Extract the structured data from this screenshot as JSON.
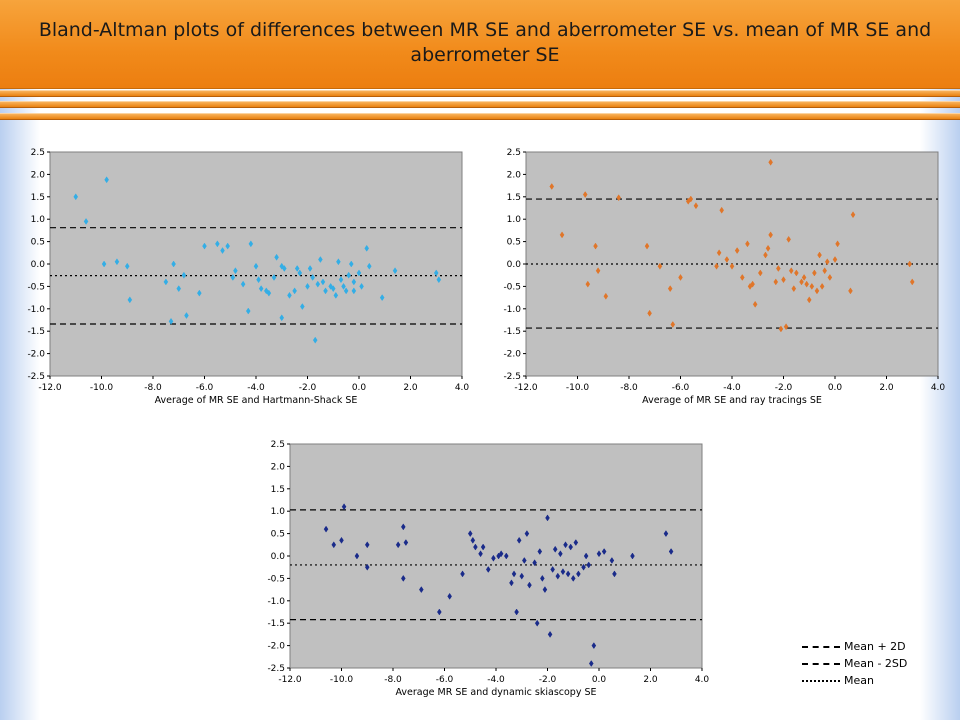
{
  "title": "Bland-Altman plots of differences between MR SE and aberrometer SE vs. mean of MR SE and aberrometer SE",
  "legend": {
    "upper": "Mean + 2D",
    "lower": "Mean - 2SD",
    "mean": "Mean"
  },
  "chart_data": [
    {
      "type": "scatter",
      "xlabel": "Average of MR SE and Hartmann-Shack SE",
      "xlim": [
        -12,
        4
      ],
      "ylim": [
        -2.5,
        2.5
      ],
      "xticks": [
        "-12.0",
        "-10.0",
        "-8.0",
        "-6.0",
        "-4.0",
        "-2.0",
        "0.0",
        "2.0",
        "4.0"
      ],
      "yticks": [
        "2.5",
        "2.0",
        "1.5",
        "1.0",
        "0.5",
        "0.0",
        "-0.5",
        "-1.0",
        "-1.5",
        "-2.0",
        "-2.5"
      ],
      "color": "#33aee6",
      "mean": -0.26,
      "upper": 0.81,
      "lower": -1.34,
      "points": [
        [
          -11.0,
          1.5
        ],
        [
          -10.6,
          0.95
        ],
        [
          -9.8,
          1.88
        ],
        [
          -9.9,
          0.0
        ],
        [
          -9.4,
          0.05
        ],
        [
          -9.0,
          -0.05
        ],
        [
          -8.9,
          -0.8
        ],
        [
          -7.5,
          -0.4
        ],
        [
          -7.3,
          -1.28
        ],
        [
          -7.2,
          0.0
        ],
        [
          -7.0,
          -0.55
        ],
        [
          -6.8,
          -0.25
        ],
        [
          -6.7,
          -1.15
        ],
        [
          -6.2,
          -0.65
        ],
        [
          -6.0,
          0.4
        ],
        [
          -5.5,
          0.45
        ],
        [
          -5.3,
          0.3
        ],
        [
          -5.1,
          0.4
        ],
        [
          -4.9,
          -0.3
        ],
        [
          -4.8,
          -0.15
        ],
        [
          -4.5,
          -0.45
        ],
        [
          -4.2,
          0.45
        ],
        [
          -4.0,
          -0.05
        ],
        [
          -3.9,
          -0.35
        ],
        [
          -3.8,
          -0.55
        ],
        [
          -3.6,
          -0.6
        ],
        [
          -3.3,
          -0.3
        ],
        [
          -3.2,
          0.15
        ],
        [
          -3.0,
          -0.05
        ],
        [
          -3.0,
          -1.2
        ],
        [
          -2.9,
          -0.1
        ],
        [
          -2.7,
          -0.7
        ],
        [
          -2.5,
          -0.6
        ],
        [
          -2.3,
          -0.2
        ],
        [
          -2.2,
          -0.95
        ],
        [
          -2.0,
          -0.5
        ],
        [
          -1.9,
          -0.1
        ],
        [
          -1.8,
          -0.3
        ],
        [
          -1.7,
          -1.7
        ],
        [
          -1.5,
          0.1
        ],
        [
          -1.4,
          -0.4
        ],
        [
          -1.3,
          -0.6
        ],
        [
          -1.1,
          -0.5
        ],
        [
          -0.9,
          -0.7
        ],
        [
          -0.8,
          0.05
        ],
        [
          -0.7,
          -0.35
        ],
        [
          -0.6,
          -0.5
        ],
        [
          -0.5,
          -0.6
        ],
        [
          -0.4,
          -0.25
        ],
        [
          -0.3,
          0.0
        ],
        [
          -0.2,
          -0.4
        ],
        [
          0.0,
          -0.2
        ],
        [
          0.1,
          -0.5
        ],
        [
          0.3,
          0.35
        ],
        [
          0.4,
          -0.05
        ],
        [
          0.9,
          -0.75
        ],
        [
          1.4,
          -0.15
        ],
        [
          3.0,
          -0.2
        ],
        [
          3.1,
          -0.35
        ],
        [
          -3.5,
          -0.65
        ],
        [
          -4.3,
          -1.05
        ],
        [
          -2.4,
          -0.1
        ],
        [
          -1.6,
          -0.45
        ],
        [
          -1.0,
          -0.55
        ],
        [
          -0.2,
          -0.6
        ]
      ]
    },
    {
      "type": "scatter",
      "xlabel": "Average of MR SE and ray tracings SE",
      "xlim": [
        -12,
        4
      ],
      "ylim": [
        -2.5,
        2.5
      ],
      "xticks": [
        "-12.0",
        "-10.0",
        "-8.0",
        "-6.0",
        "-4.0",
        "-2.0",
        "0.0",
        "2.0",
        "4.0"
      ],
      "yticks": [
        "2.5",
        "2.0",
        "1.5",
        "1.0",
        "0.5",
        "0.0",
        "-0.5",
        "-1.0",
        "-1.5",
        "-2.0",
        "-2.5"
      ],
      "color": "#e0762a",
      "mean": 0.0,
      "upper": 1.45,
      "lower": -1.43,
      "points": [
        [
          -11.0,
          1.73
        ],
        [
          -10.6,
          0.65
        ],
        [
          -9.7,
          1.55
        ],
        [
          -9.6,
          -0.45
        ],
        [
          -9.3,
          0.4
        ],
        [
          -9.2,
          -0.15
        ],
        [
          -8.9,
          -0.72
        ],
        [
          -8.4,
          1.48
        ],
        [
          -7.3,
          0.4
        ],
        [
          -7.2,
          -1.1
        ],
        [
          -6.8,
          -0.05
        ],
        [
          -6.4,
          -0.55
        ],
        [
          -6.3,
          -1.35
        ],
        [
          -6.0,
          -0.3
        ],
        [
          -5.7,
          1.4
        ],
        [
          -5.6,
          1.45
        ],
        [
          -5.4,
          1.3
        ],
        [
          -4.6,
          -0.05
        ],
        [
          -4.5,
          0.25
        ],
        [
          -4.4,
          1.2
        ],
        [
          -4.2,
          0.1
        ],
        [
          -4.0,
          -0.05
        ],
        [
          -3.8,
          0.3
        ],
        [
          -3.6,
          -0.3
        ],
        [
          -3.4,
          0.45
        ],
        [
          -3.2,
          -0.45
        ],
        [
          -3.1,
          -0.9
        ],
        [
          -2.9,
          -0.2
        ],
        [
          -2.7,
          0.2
        ],
        [
          -2.5,
          2.27
        ],
        [
          -2.5,
          0.65
        ],
        [
          -2.3,
          -0.4
        ],
        [
          -2.2,
          -0.1
        ],
        [
          -2.1,
          -1.45
        ],
        [
          -2.0,
          -0.35
        ],
        [
          -1.8,
          0.55
        ],
        [
          -1.7,
          -0.15
        ],
        [
          -1.6,
          -0.55
        ],
        [
          -1.5,
          -0.2
        ],
        [
          -1.3,
          -0.4
        ],
        [
          -1.2,
          -0.3
        ],
        [
          -1.0,
          -0.8
        ],
        [
          -0.9,
          -0.5
        ],
        [
          -0.8,
          -0.2
        ],
        [
          -0.7,
          -0.6
        ],
        [
          -0.6,
          0.2
        ],
        [
          -0.5,
          -0.5
        ],
        [
          -0.3,
          0.05
        ],
        [
          -0.2,
          -0.3
        ],
        [
          0.0,
          0.1
        ],
        [
          0.1,
          0.45
        ],
        [
          0.6,
          -0.6
        ],
        [
          0.7,
          1.1
        ],
        [
          2.9,
          0.0
        ],
        [
          3.0,
          -0.4
        ],
        [
          -1.9,
          -1.4
        ],
        [
          -2.6,
          0.35
        ],
        [
          -3.3,
          -0.5
        ],
        [
          -0.4,
          -0.15
        ],
        [
          -1.1,
          -0.45
        ]
      ]
    },
    {
      "type": "scatter",
      "xlabel": "Average MR SE and dynamic skiascopy SE",
      "xlim": [
        -12,
        4
      ],
      "ylim": [
        -2.5,
        2.5
      ],
      "xticks": [
        "-12.0",
        "-10.0",
        "-8.0",
        "-6.0",
        "-4.0",
        "-2.0",
        "0.0",
        "2.0",
        "4.0"
      ],
      "yticks": [
        "2.5",
        "2.0",
        "1.5",
        "1.0",
        "0.5",
        "0.0",
        "-0.5",
        "-1.0",
        "-1.5",
        "-2.0",
        "-2.5"
      ],
      "color": "#1a2b8a",
      "mean": -0.2,
      "upper": 1.03,
      "lower": -1.42,
      "points": [
        [
          -10.6,
          0.6
        ],
        [
          -10.3,
          0.25
        ],
        [
          -9.9,
          1.1
        ],
        [
          -10.0,
          0.35
        ],
        [
          -9.4,
          0.0
        ],
        [
          -9.0,
          0.25
        ],
        [
          -9.0,
          -0.25
        ],
        [
          -7.8,
          0.25
        ],
        [
          -7.6,
          0.65
        ],
        [
          -7.5,
          0.3
        ],
        [
          -7.6,
          -0.5
        ],
        [
          -6.9,
          -0.75
        ],
        [
          -6.2,
          -1.25
        ],
        [
          -5.8,
          -0.9
        ],
        [
          -5.3,
          -0.4
        ],
        [
          -5.0,
          0.5
        ],
        [
          -4.9,
          0.35
        ],
        [
          -4.8,
          0.2
        ],
        [
          -4.5,
          0.2
        ],
        [
          -4.3,
          -0.3
        ],
        [
          -4.1,
          -0.05
        ],
        [
          -3.9,
          0.0
        ],
        [
          -3.8,
          0.05
        ],
        [
          -3.6,
          0.0
        ],
        [
          -3.3,
          -0.4
        ],
        [
          -3.2,
          -1.25
        ],
        [
          -3.1,
          0.35
        ],
        [
          -3.0,
          -0.45
        ],
        [
          -2.8,
          0.5
        ],
        [
          -2.7,
          -0.65
        ],
        [
          -2.5,
          -0.15
        ],
        [
          -2.4,
          -1.5
        ],
        [
          -2.3,
          0.1
        ],
        [
          -2.2,
          -0.5
        ],
        [
          -2.1,
          -0.75
        ],
        [
          -2.0,
          0.85
        ],
        [
          -1.9,
          -1.75
        ],
        [
          -1.8,
          -0.3
        ],
        [
          -1.7,
          0.15
        ],
        [
          -1.6,
          -0.45
        ],
        [
          -1.5,
          0.05
        ],
        [
          -1.4,
          -0.35
        ],
        [
          -1.3,
          0.25
        ],
        [
          -1.2,
          -0.4
        ],
        [
          -1.1,
          0.2
        ],
        [
          -1.0,
          -0.5
        ],
        [
          -0.9,
          0.3
        ],
        [
          -0.8,
          -0.4
        ],
        [
          -0.5,
          0.0
        ],
        [
          -0.4,
          -0.2
        ],
        [
          -0.3,
          -2.4
        ],
        [
          -0.2,
          -2.0
        ],
        [
          0.0,
          0.05
        ],
        [
          0.2,
          0.1
        ],
        [
          0.6,
          -0.4
        ],
        [
          0.5,
          -0.1
        ],
        [
          1.3,
          0.0
        ],
        [
          2.6,
          0.5
        ],
        [
          2.8,
          0.1
        ],
        [
          -4.6,
          0.05
        ],
        [
          -2.9,
          -0.1
        ],
        [
          -0.6,
          -0.25
        ],
        [
          -3.4,
          -0.6
        ]
      ]
    }
  ]
}
